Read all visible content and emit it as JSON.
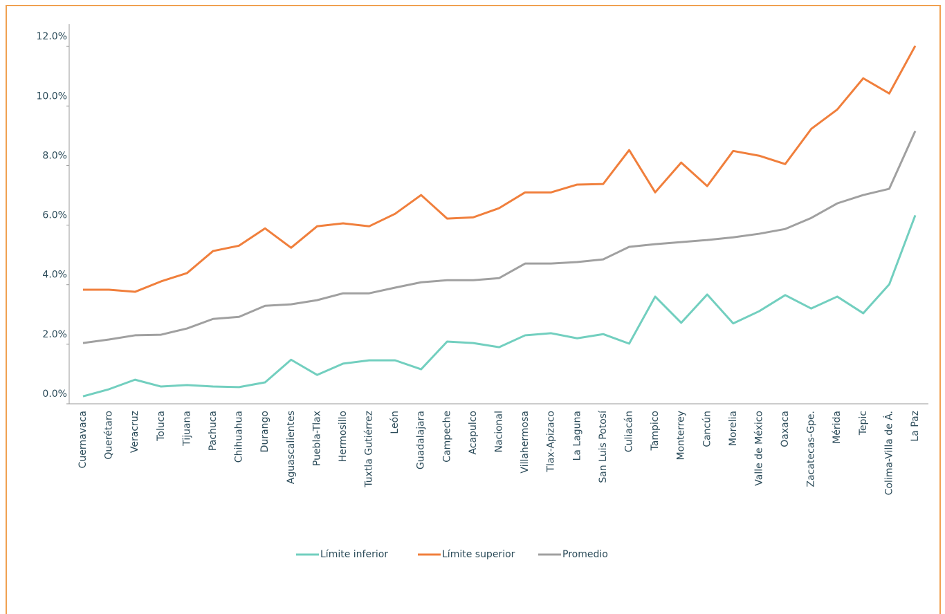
{
  "chart_data": {
    "type": "line",
    "categories": [
      "Cuernavaca",
      "Querétaro",
      "Veracruz",
      "Toluca",
      "Tijuana",
      "Pachuca",
      "Chihuahua",
      "Durango",
      "Aguascalientes",
      "Puebla-Tlax",
      "Hermosillo",
      "Tuxtla Gutiérrez",
      "León",
      "Guadalajara",
      "Campeche",
      "Acapulco",
      "Nacional",
      "Villahermosa",
      "Tlax-Apizaco",
      "La Laguna",
      "San Luis Potosí",
      "Culiacán",
      "Tampico",
      "Monterrey",
      "Cancún",
      "Morelia",
      "Valle de México",
      "Oaxaca",
      "Zacatecas-Gpe.",
      "Mérida",
      "Tepic",
      "Colima-Villa de Á.",
      "La Paz"
    ],
    "series": [
      {
        "name": "Límite inferior",
        "color": "#72cfbf",
        "values": [
          0.25,
          0.49,
          0.81,
          0.58,
          0.63,
          0.58,
          0.56,
          0.72,
          1.48,
          0.97,
          1.35,
          1.46,
          1.46,
          1.16,
          2.09,
          2.04,
          1.9,
          2.3,
          2.37,
          2.2,
          2.34,
          2.02,
          3.6,
          2.72,
          3.67,
          2.7,
          3.11,
          3.65,
          3.2,
          3.6,
          3.04,
          4.01,
          6.33
        ]
      },
      {
        "name": "Límite superior",
        "color": "#f07f3c",
        "values": [
          3.83,
          3.83,
          3.76,
          4.11,
          4.39,
          5.13,
          5.31,
          5.89,
          5.24,
          5.96,
          6.06,
          5.96,
          6.38,
          7.01,
          6.22,
          6.26,
          6.57,
          7.1,
          7.1,
          7.36,
          7.38,
          8.52,
          7.1,
          8.1,
          7.31,
          8.49,
          8.33,
          8.05,
          9.23,
          9.88,
          10.93,
          10.42,
          12.02
        ]
      },
      {
        "name": "Promedio",
        "color": "#a0a0a0",
        "values": [
          2.04,
          2.16,
          2.3,
          2.32,
          2.53,
          2.85,
          2.92,
          3.29,
          3.34,
          3.48,
          3.71,
          3.71,
          3.9,
          4.08,
          4.15,
          4.15,
          4.22,
          4.71,
          4.71,
          4.76,
          4.85,
          5.27,
          5.36,
          5.43,
          5.5,
          5.59,
          5.71,
          5.87,
          6.24,
          6.73,
          7.01,
          7.22,
          9.16
        ]
      }
    ],
    "ylim": [
      0,
      12.7
    ],
    "yticks": [
      {
        "value": 0,
        "label": "0.0%"
      },
      {
        "value": 2,
        "label": "2.0%"
      },
      {
        "value": 4,
        "label": "4.0%"
      },
      {
        "value": 6,
        "label": "6.0%"
      },
      {
        "value": 8,
        "label": "8.0%"
      },
      {
        "value": 10,
        "label": "10.0%"
      },
      {
        "value": 12,
        "label": "12.0%"
      }
    ],
    "grid": false,
    "legend": "bottom"
  }
}
